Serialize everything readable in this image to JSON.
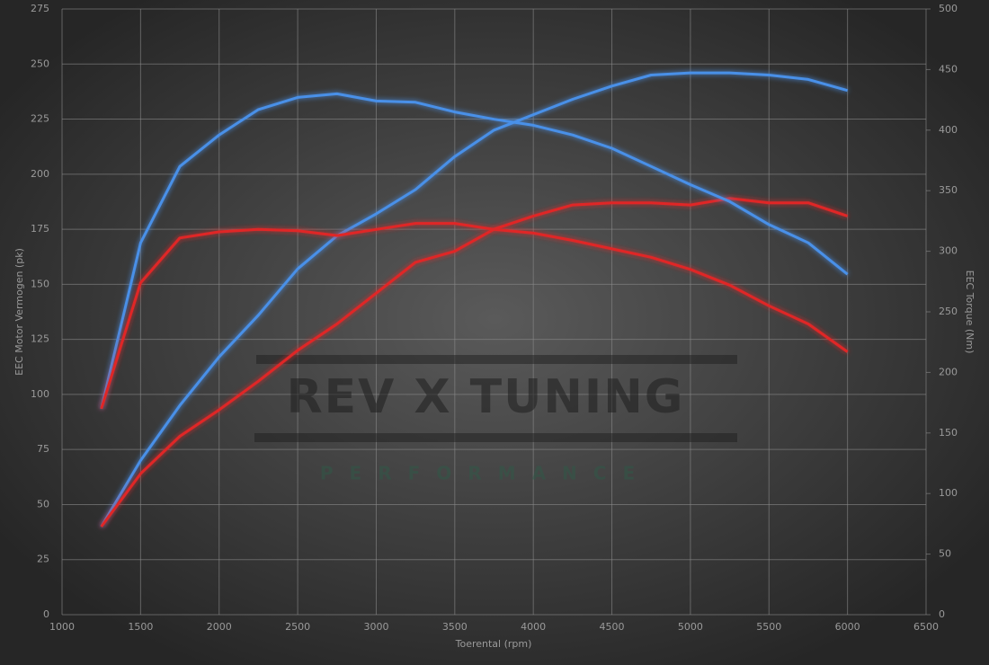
{
  "chart_data": {
    "type": "line",
    "x_label": "Toerental (rpm)",
    "y_label": "EEC Motor Vermogen (pk)",
    "y2_label": "EEC Torque (Nm)",
    "watermark": "REV X TUNING",
    "watermark_sub": "PERFORMANCE",
    "x": [
      1250,
      1500,
      1750,
      2000,
      2250,
      2500,
      2750,
      3000,
      3250,
      3500,
      3750,
      4000,
      4250,
      4500,
      4750,
      5000,
      5250,
      5500,
      5750,
      6000
    ],
    "series": [
      {
        "color": "#4a90e8",
        "values": [
          40,
          70,
          95,
          117,
          136,
          157,
          172,
          182,
          193,
          208,
          220,
          227,
          234,
          240,
          245,
          246,
          246,
          245,
          243,
          238
        ]
      },
      {
        "color": "#e02828",
        "values": [
          40,
          64,
          81,
          93,
          106,
          120,
          132,
          146,
          160,
          165,
          175,
          181,
          186,
          187,
          187,
          186,
          189,
          187,
          187,
          181
        ]
      },
      {
        "color": "#4a90e8",
        "axis": "y2",
        "values": [
          170,
          307,
          370,
          396,
          417,
          427,
          430,
          424,
          423,
          415,
          409,
          404,
          396,
          385,
          370,
          355,
          341,
          322,
          307,
          281
        ]
      },
      {
        "color": "#e02828",
        "axis": "y2",
        "values": [
          170,
          274,
          311,
          316,
          318,
          317,
          313,
          318,
          323,
          323,
          318,
          315,
          309,
          302,
          295,
          285,
          272,
          255,
          240,
          217
        ]
      }
    ],
    "xlim": [
      1000,
      6500
    ],
    "xticks": [
      1000,
      1500,
      2000,
      2500,
      3000,
      3500,
      4000,
      4500,
      5000,
      5500,
      6000,
      6500
    ],
    "ylim": [
      0,
      275
    ],
    "yticks": [
      0,
      25,
      50,
      75,
      100,
      125,
      150,
      175,
      200,
      225,
      250,
      275
    ],
    "y2lim": [
      0,
      500
    ],
    "y2ticks": [
      0,
      50,
      100,
      150,
      200,
      250,
      300,
      350,
      400,
      450,
      500
    ],
    "grid": true
  }
}
